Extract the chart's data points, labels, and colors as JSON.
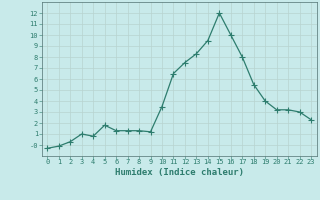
{
  "x": [
    0,
    1,
    2,
    3,
    4,
    5,
    6,
    7,
    8,
    9,
    10,
    11,
    12,
    13,
    14,
    15,
    16,
    17,
    18,
    19,
    20,
    21,
    22,
    23
  ],
  "y": [
    -0.3,
    -0.1,
    0.3,
    1.0,
    0.8,
    1.8,
    1.3,
    1.3,
    1.3,
    1.2,
    3.5,
    6.5,
    7.5,
    8.3,
    9.5,
    12.0,
    10.0,
    8.0,
    5.5,
    4.0,
    3.2,
    3.2,
    3.0,
    2.3
  ],
  "line_color": "#2e7d6e",
  "marker": "+",
  "marker_size": 4.0,
  "line_width": 0.9,
  "background_color": "#c8eaea",
  "grid_color": "#b8d4d0",
  "xlabel": "Humidex (Indice chaleur)",
  "tick_fontsize": 5.0,
  "xlabel_fontsize": 6.5,
  "ylim": [
    -1,
    13
  ],
  "xlim": [
    -0.5,
    23.5
  ],
  "yticks": [
    0,
    1,
    2,
    3,
    4,
    5,
    6,
    7,
    8,
    9,
    10,
    11,
    12
  ],
  "ytick_labels": [
    "-0",
    "1",
    "2",
    "3",
    "4",
    "5",
    "6",
    "7",
    "8",
    "9",
    "10",
    "11",
    "12"
  ],
  "xticks": [
    0,
    1,
    2,
    3,
    4,
    5,
    6,
    7,
    8,
    9,
    10,
    11,
    12,
    13,
    14,
    15,
    16,
    17,
    18,
    19,
    20,
    21,
    22,
    23
  ]
}
